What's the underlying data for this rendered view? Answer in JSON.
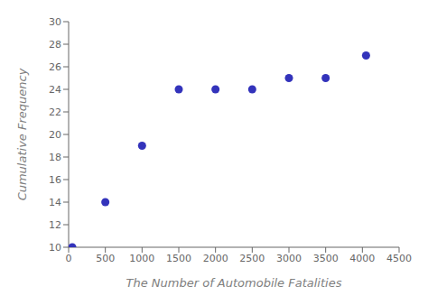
{
  "chart_data": {
    "type": "scatter",
    "x": [
      50,
      500,
      1000,
      1500,
      2000,
      2500,
      3000,
      3500,
      4050
    ],
    "values": [
      10,
      14,
      19,
      24,
      24,
      24,
      25,
      25,
      27
    ],
    "xlabel": "The Number of Automobile Fatalities",
    "ylabel": "Cumulative Frequency",
    "xlim": [
      0,
      4500
    ],
    "ylim": [
      10,
      30
    ],
    "xticks": [
      0,
      500,
      1000,
      1500,
      2000,
      2500,
      3000,
      3500,
      4000,
      4500
    ],
    "yticks": [
      10,
      12,
      14,
      16,
      18,
      20,
      22,
      24,
      26,
      28,
      30
    ],
    "color": "#3333bb",
    "grid": false
  }
}
